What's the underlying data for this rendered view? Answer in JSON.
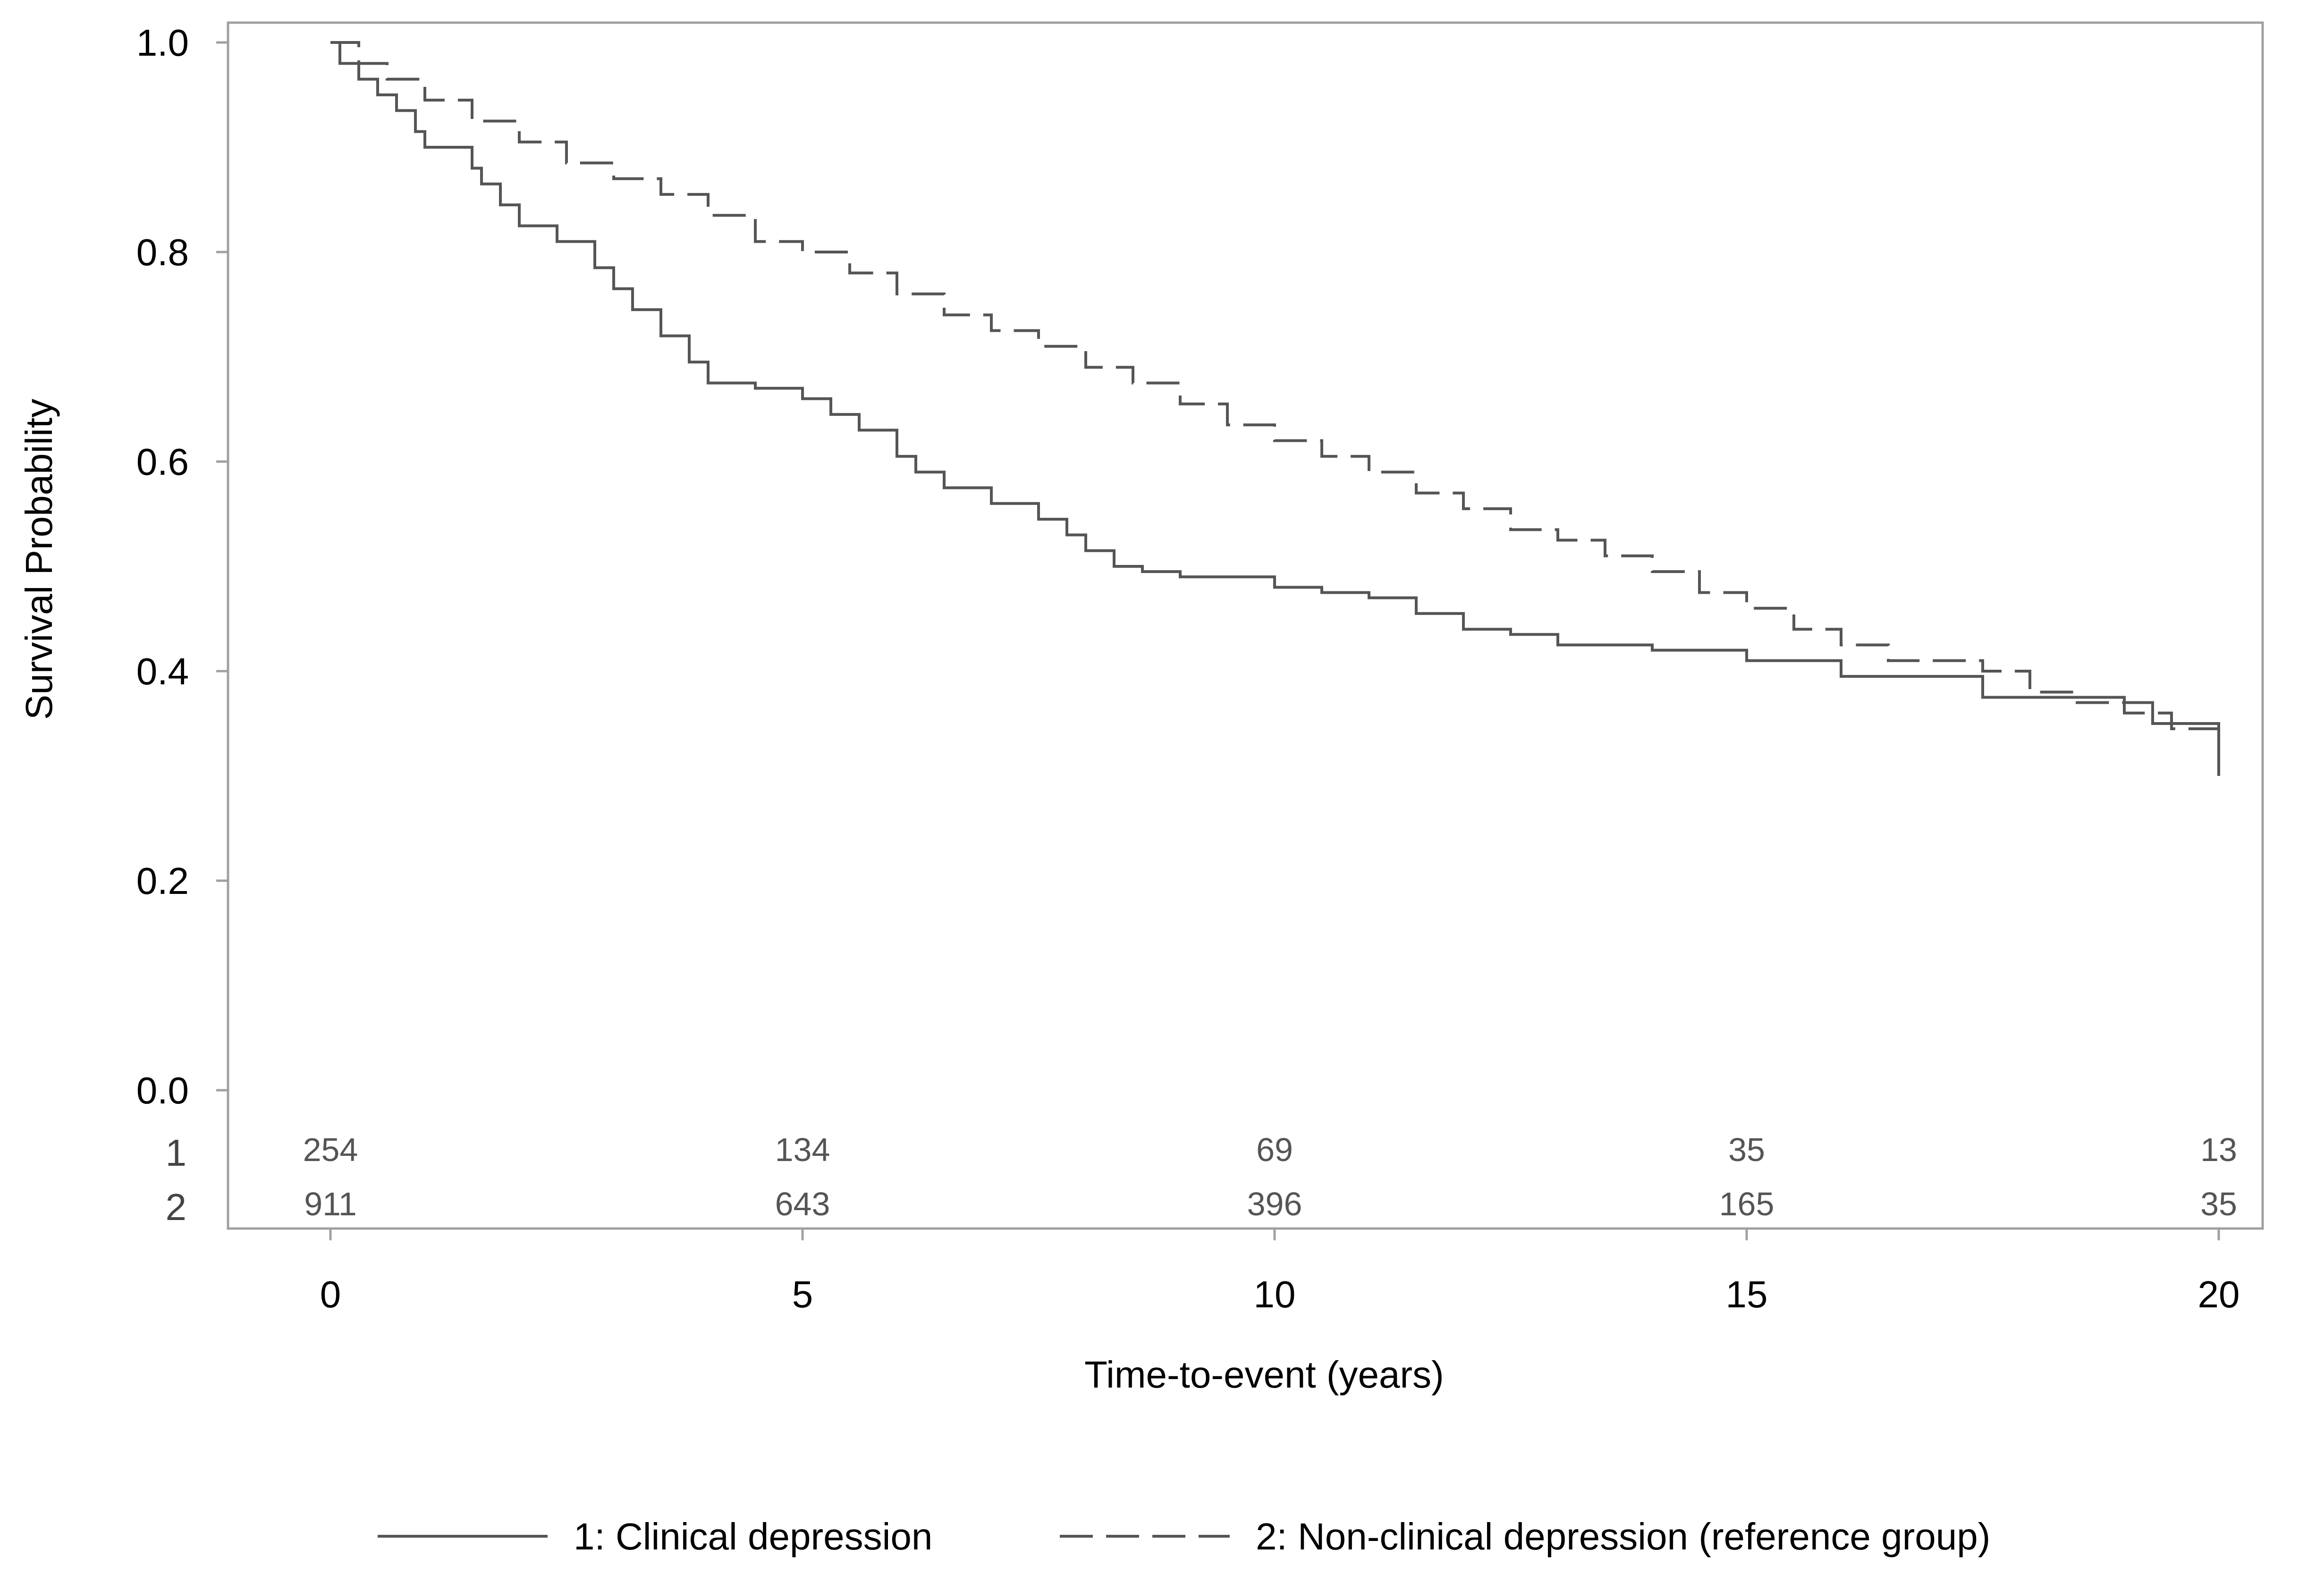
{
  "chart_data": {
    "type": "line",
    "subtype": "kaplan-meier",
    "title": "",
    "xlabel": "Time-to-event (years)",
    "ylabel": "Survival Probability",
    "xlim": [
      0,
      20
    ],
    "ylim": [
      0,
      1
    ],
    "xticks": [
      0,
      5,
      10,
      15,
      20
    ],
    "xtick_labels": [
      "0",
      "5",
      "10",
      "15",
      "20"
    ],
    "yticks": [
      0.0,
      0.2,
      0.4,
      0.6,
      0.8,
      1.0
    ],
    "ytick_labels": [
      "0.0",
      "0.2",
      "0.4",
      "0.6",
      "0.8",
      "1.0"
    ],
    "grid": false,
    "legend_position": "bottom",
    "series": [
      {
        "name": "1: Clinical depression",
        "style": "solid",
        "color": "#555555",
        "x": [
          0,
          0.1,
          0.3,
          0.5,
          0.7,
          0.9,
          1.0,
          1.5,
          1.6,
          1.8,
          2.0,
          2.4,
          2.8,
          3.0,
          3.2,
          3.5,
          3.8,
          4.0,
          4.5,
          5.0,
          5.3,
          5.6,
          6.0,
          6.2,
          6.5,
          7.0,
          7.5,
          7.8,
          8.0,
          8.3,
          8.6,
          9.0,
          9.5,
          10.0,
          10.5,
          11.0,
          11.5,
          12.0,
          12.5,
          13.0,
          14.0,
          15.0,
          16.0,
          17.0,
          17.5,
          18.0,
          19.0,
          19.3,
          20.0
        ],
        "y": [
          1.0,
          0.98,
          0.965,
          0.95,
          0.935,
          0.915,
          0.9,
          0.88,
          0.865,
          0.845,
          0.825,
          0.81,
          0.785,
          0.765,
          0.745,
          0.72,
          0.695,
          0.675,
          0.67,
          0.66,
          0.645,
          0.63,
          0.605,
          0.59,
          0.575,
          0.56,
          0.545,
          0.53,
          0.515,
          0.5,
          0.495,
          0.49,
          0.49,
          0.48,
          0.475,
          0.47,
          0.455,
          0.44,
          0.435,
          0.425,
          0.42,
          0.41,
          0.395,
          0.395,
          0.375,
          0.375,
          0.37,
          0.35,
          0.3
        ]
      },
      {
        "name": "2: Non-clinical depression (reference group)",
        "style": "dashed",
        "color": "#555555",
        "x": [
          0,
          0.3,
          0.6,
          1.0,
          1.5,
          2.0,
          2.5,
          3.0,
          3.5,
          4.0,
          4.5,
          5.0,
          5.5,
          6.0,
          6.5,
          7.0,
          7.5,
          8.0,
          8.5,
          9.0,
          9.5,
          10.0,
          10.5,
          11.0,
          11.5,
          12.0,
          12.5,
          13.0,
          13.5,
          14.0,
          14.5,
          15.0,
          15.5,
          16.0,
          16.5,
          17.0,
          17.5,
          18.0,
          18.5,
          19.0,
          19.5,
          20.0
        ],
        "y": [
          1.0,
          0.98,
          0.965,
          0.945,
          0.925,
          0.905,
          0.885,
          0.87,
          0.855,
          0.835,
          0.81,
          0.8,
          0.78,
          0.76,
          0.74,
          0.725,
          0.71,
          0.69,
          0.675,
          0.655,
          0.635,
          0.62,
          0.605,
          0.59,
          0.57,
          0.555,
          0.535,
          0.525,
          0.51,
          0.495,
          0.475,
          0.46,
          0.44,
          0.425,
          0.41,
          0.41,
          0.4,
          0.38,
          0.37,
          0.36,
          0.345,
          0.31
        ]
      }
    ],
    "risk_table": {
      "times": [
        0,
        5,
        10,
        15,
        20
      ],
      "rows": [
        {
          "group_label": "1",
          "values": [
            "254",
            "134",
            "69",
            "35",
            "13"
          ]
        },
        {
          "group_label": "2",
          "values": [
            "911",
            "643",
            "396",
            "165",
            "35"
          ]
        }
      ]
    }
  }
}
